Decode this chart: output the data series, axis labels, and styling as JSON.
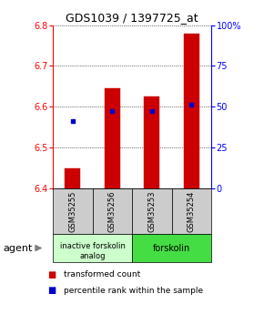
{
  "title": "GDS1039 / 1397725_at",
  "samples": [
    "GSM35255",
    "GSM35256",
    "GSM35253",
    "GSM35254"
  ],
  "bar_values": [
    6.45,
    6.645,
    6.625,
    6.78
  ],
  "bar_bottom": 6.4,
  "blue_dot_values": [
    6.565,
    6.59,
    6.59,
    6.605
  ],
  "ylim_left": [
    6.4,
    6.8
  ],
  "ylim_right": [
    0,
    100
  ],
  "yticks_left": [
    6.4,
    6.5,
    6.6,
    6.7,
    6.8
  ],
  "yticks_right": [
    0,
    25,
    50,
    75,
    100
  ],
  "ytick_labels_right": [
    "0",
    "25",
    "50",
    "75",
    "100%"
  ],
  "bar_color": "#cc0000",
  "dot_color": "#0000cc",
  "bar_width": 0.4,
  "sample_box_color": "#cccccc",
  "group1_color": "#ccffcc",
  "group2_color": "#44dd44",
  "title_fontsize": 9,
  "tick_fontsize": 7,
  "sample_fontsize": 6,
  "group_fontsize": 6,
  "legend_fontsize": 6.5,
  "agent_fontsize": 8
}
